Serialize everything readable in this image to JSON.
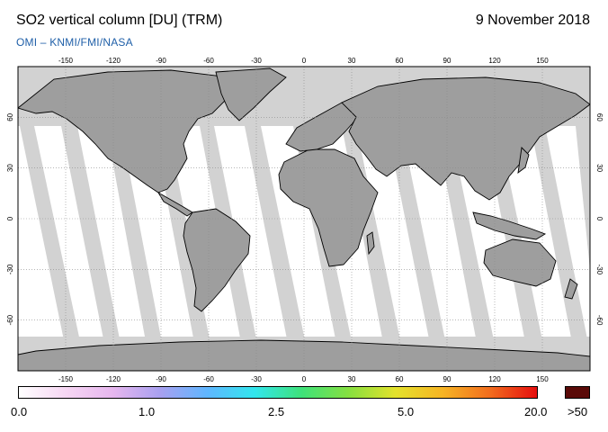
{
  "header": {
    "title": "SO2 vertical column [DU] (TRM)",
    "date": "9 November 2018",
    "subtitle": "OMI  –  KNMI/FMI/NASA"
  },
  "map": {
    "longitude_ticks": [
      "-150",
      "-120",
      "-90",
      "-60",
      "-30",
      "0",
      "30",
      "60",
      "90",
      "120",
      "150"
    ],
    "latitude_ticks": [
      "60",
      "30",
      "0",
      "-30",
      "-60"
    ],
    "colors": {
      "ocean": "#ffffff",
      "no_data": "#d2d2d2",
      "land_band": "#9e9e9e",
      "coastline": "#000000",
      "grid": "#8a8a8a"
    }
  },
  "colorbar": {
    "labels": [
      "0.0",
      "1.0",
      "2.5",
      "5.0",
      "20.0",
      ">50"
    ],
    "gradient": [
      "#ffffff",
      "#f6d6f3",
      "#e6b6ee",
      "#a8a0f0",
      "#5fb6ff",
      "#32e6ee",
      "#3ee27a",
      "#86e040",
      "#e4e22c",
      "#f6b424",
      "#f26d1e",
      "#e60e0e"
    ],
    "overflow_color": "#5a0a08"
  }
}
